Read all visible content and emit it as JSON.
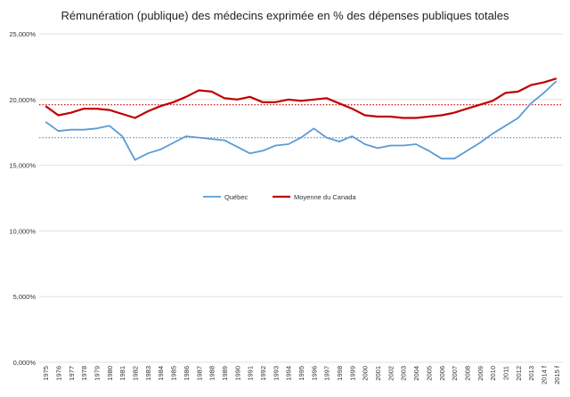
{
  "chart_data": {
    "type": "line",
    "title": "Rémunération (publique)  des médecins exprimée en % des dépenses publiques totales",
    "xlabel": "",
    "ylabel": "",
    "ylim": [
      0,
      25
    ],
    "y_ticks": [
      "0,000%",
      "5,000%",
      "10,000%",
      "15,000%",
      "20,000%",
      "25,000%"
    ],
    "y_tick_values": [
      0,
      5,
      10,
      15,
      20,
      25
    ],
    "grid": true,
    "legend_position": "center",
    "categories": [
      "1975",
      "1976",
      "1977",
      "1978",
      "1979",
      "1980",
      "1981",
      "1982",
      "1983",
      "1984",
      "1985",
      "1986",
      "1987",
      "1988",
      "1989",
      "1990",
      "1991",
      "1992",
      "1993",
      "1994",
      "1995",
      "1996",
      "1997",
      "1998",
      "1999",
      "2000",
      "2001",
      "2002",
      "2003",
      "2004",
      "2005",
      "2006",
      "2007",
      "2008",
      "2009",
      "2010",
      "2011",
      "2012",
      "2013",
      "2014 f",
      "2015 f"
    ],
    "series": [
      {
        "name": "Québec",
        "color": "#5b9bd5",
        "values": [
          18.3,
          17.6,
          17.7,
          17.7,
          17.8,
          18.0,
          17.2,
          15.4,
          15.9,
          16.2,
          16.7,
          17.2,
          17.1,
          17.0,
          16.9,
          16.4,
          15.9,
          16.1,
          16.5,
          16.6,
          17.1,
          17.8,
          17.1,
          16.8,
          17.2,
          16.6,
          16.3,
          16.5,
          16.5,
          16.6,
          16.1,
          15.5,
          15.5,
          16.1,
          16.7,
          17.4,
          18.0,
          18.6,
          19.7,
          20.5,
          21.4
        ],
        "average": 17.1
      },
      {
        "name": "Moyenne du Canada",
        "color": "#c00000",
        "values": [
          19.5,
          18.8,
          19.0,
          19.3,
          19.3,
          19.2,
          18.9,
          18.6,
          19.1,
          19.5,
          19.8,
          20.2,
          20.7,
          20.6,
          20.1,
          20.0,
          20.2,
          19.8,
          19.8,
          20.0,
          19.9,
          20.0,
          20.1,
          19.7,
          19.3,
          18.8,
          18.7,
          18.7,
          18.6,
          18.6,
          18.7,
          18.8,
          19.0,
          19.3,
          19.6,
          19.9,
          20.5,
          20.6,
          21.1,
          21.3,
          21.6
        ],
        "average": 19.6
      }
    ]
  }
}
